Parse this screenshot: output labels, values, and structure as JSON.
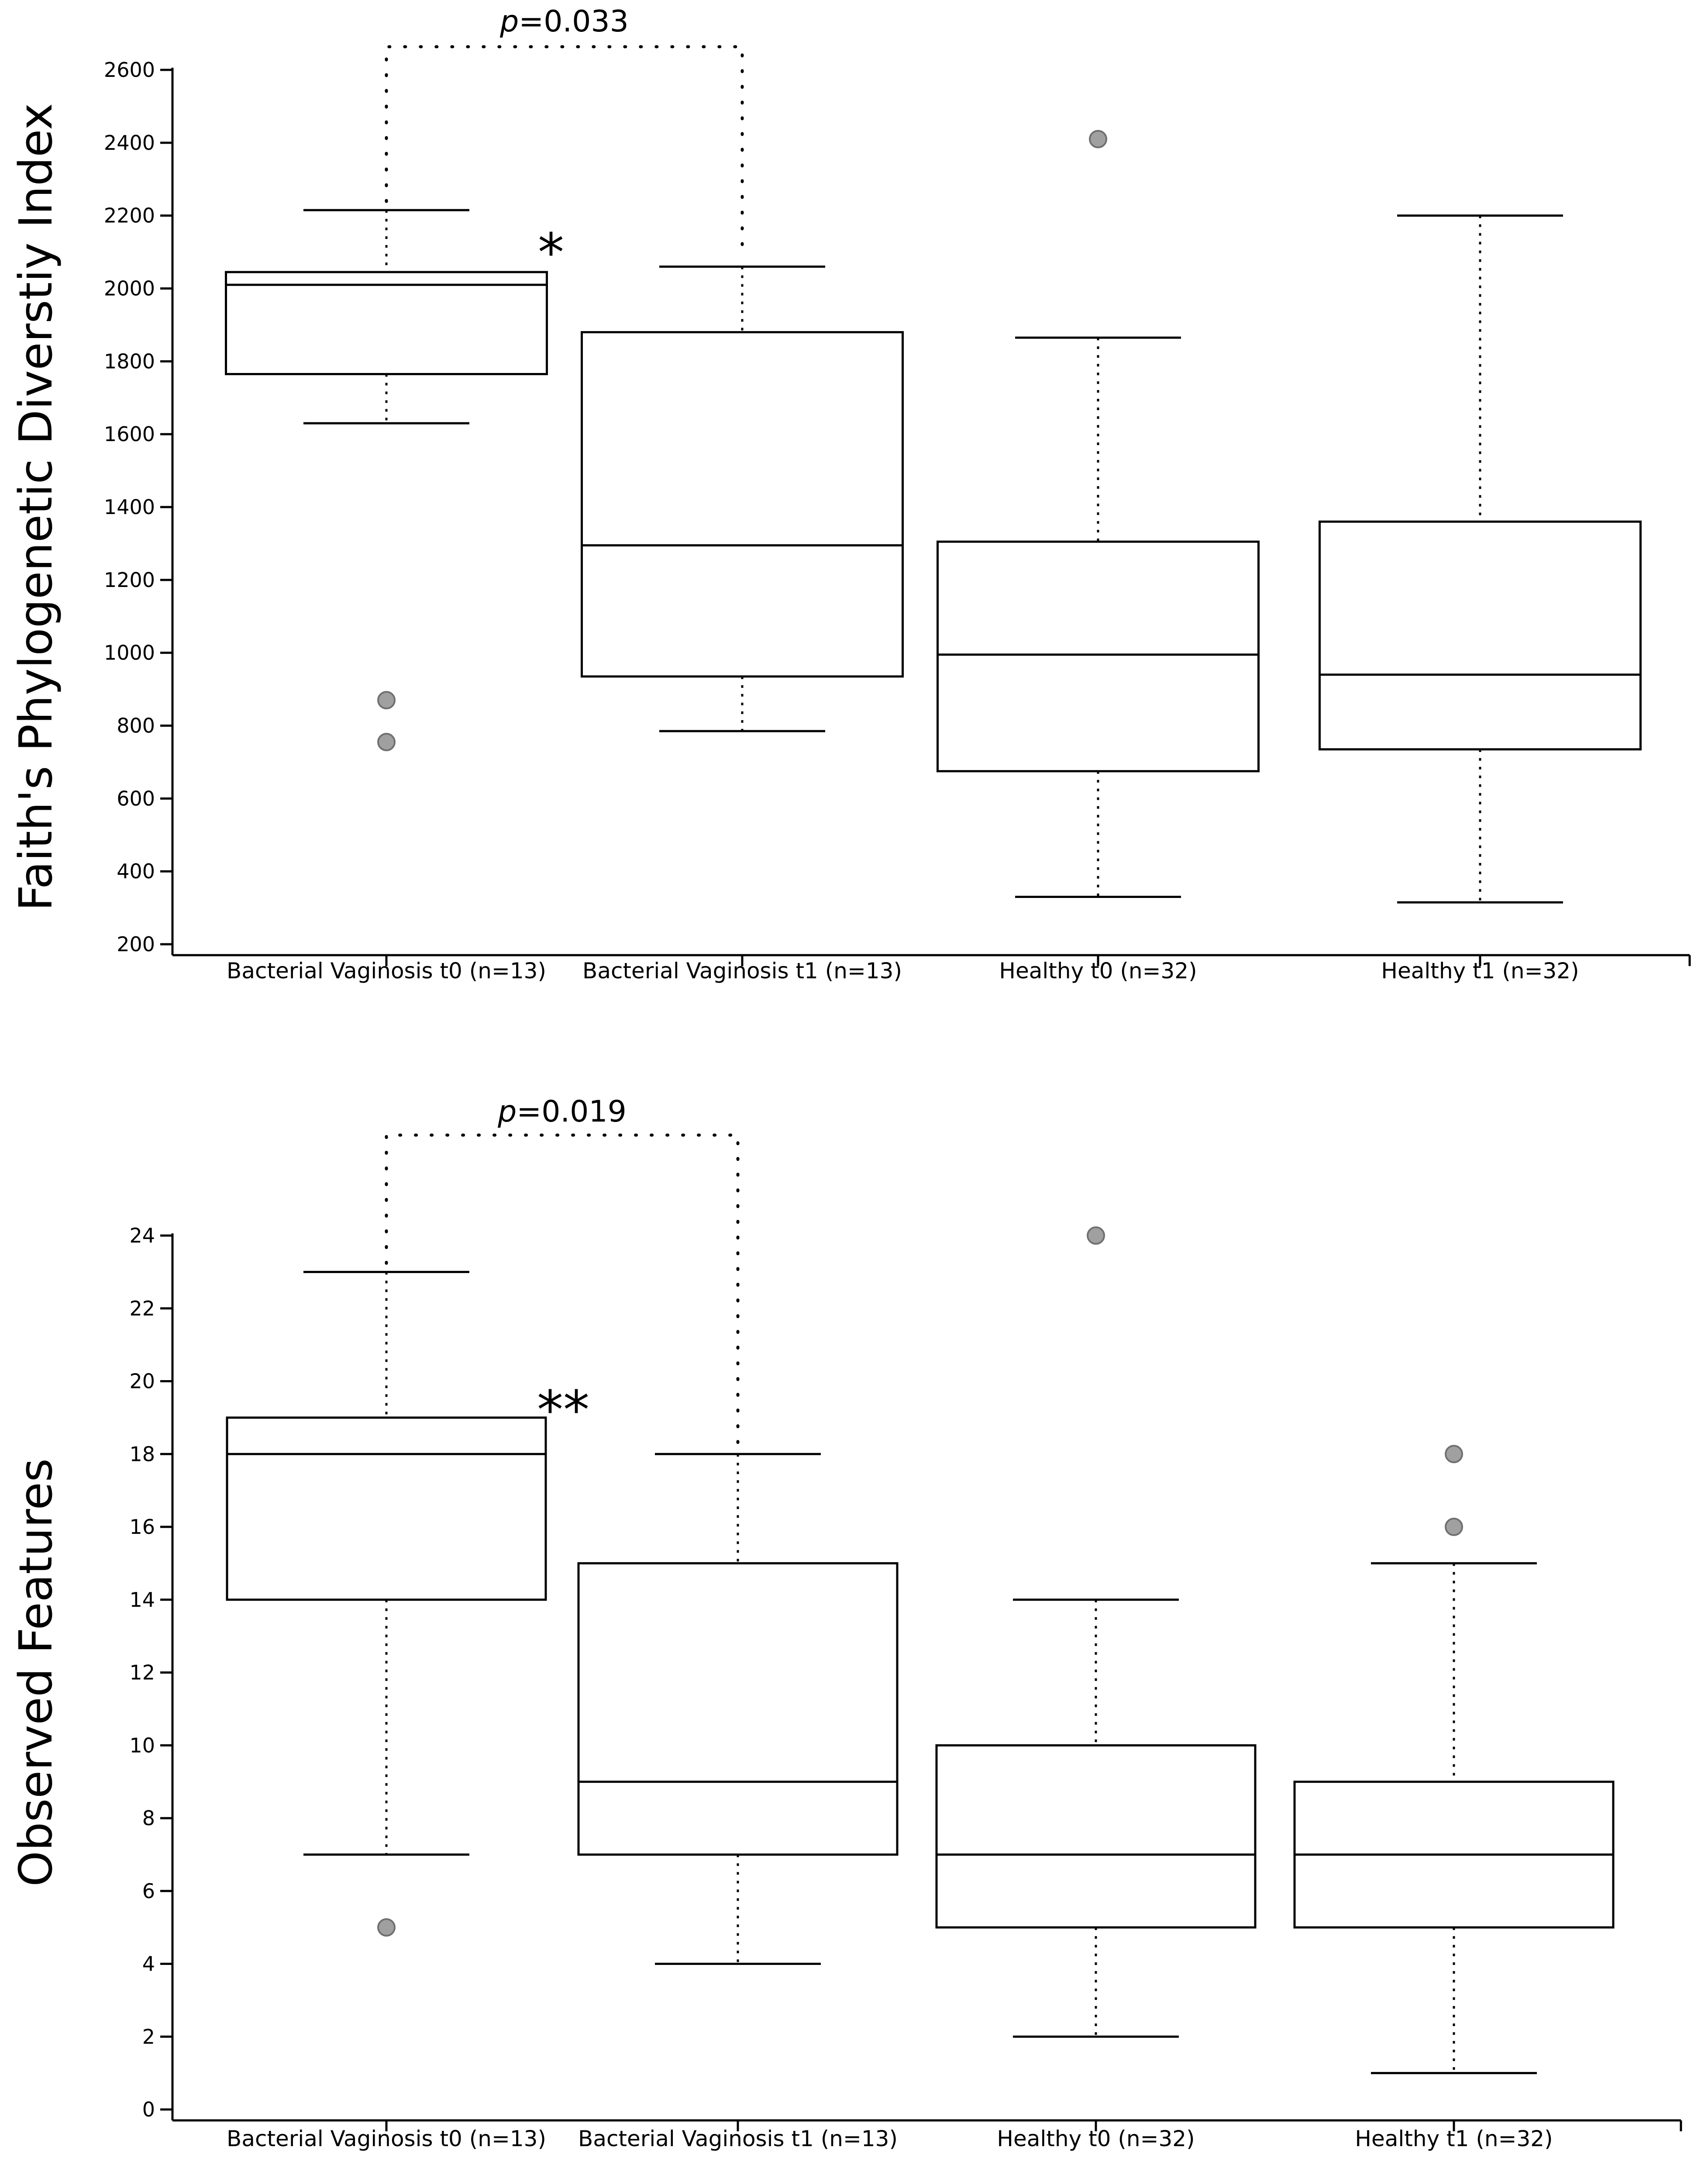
{
  "chart_data": [
    {
      "type": "box",
      "ylabel": "Faith's Phylogenetic Diverstiy Index",
      "ylim": [
        200,
        2600
      ],
      "yticks": [
        200,
        400,
        600,
        800,
        1000,
        1200,
        1400,
        1600,
        1800,
        2000,
        2200,
        2400,
        2600
      ],
      "categories": [
        "Bacterial Vaginosis t0 (n=13)",
        "Bacterial Vaginosis t1 (n=13)",
        "Healthy t0 (n=32)",
        "Healthy t1 (n=32)"
      ],
      "boxes": [
        {
          "min": 1630,
          "q1": 1765,
          "median": 2010,
          "q3": 2045,
          "max": 2215,
          "outliers": [
            870,
            755
          ]
        },
        {
          "min": 785,
          "q1": 935,
          "median": 1295,
          "q3": 1880,
          "max": 2060,
          "outliers": []
        },
        {
          "min": 330,
          "q1": 675,
          "median": 995,
          "q3": 1305,
          "max": 1865,
          "outliers": [
            2410
          ]
        },
        {
          "min": 315,
          "q1": 735,
          "median": 940,
          "q3": 1360,
          "max": 2200,
          "outliers": []
        }
      ],
      "comparison": {
        "groups": [
          0,
          1
        ],
        "p_prefix": "p",
        "p_value": "=0.033",
        "stars": "*"
      }
    },
    {
      "type": "box",
      "ylabel": "Observed Features",
      "ylim": [
        0,
        24
      ],
      "yticks": [
        0,
        2,
        4,
        6,
        8,
        10,
        12,
        14,
        16,
        18,
        20,
        22,
        24
      ],
      "categories": [
        "Bacterial Vaginosis t0 (n=13)",
        "Bacterial Vaginosis t1 (n=13)",
        "Healthy t0 (n=32)",
        "Healthy t1 (n=32)"
      ],
      "boxes": [
        {
          "min": 7,
          "q1": 14,
          "median": 18,
          "q3": 19,
          "max": 23,
          "outliers": [
            5
          ]
        },
        {
          "min": 4,
          "q1": 7,
          "median": 9,
          "q3": 15,
          "max": 18,
          "outliers": []
        },
        {
          "min": 2,
          "q1": 5,
          "median": 7,
          "q3": 10,
          "max": 14,
          "outliers": [
            24
          ]
        },
        {
          "min": 1,
          "q1": 5,
          "median": 7,
          "q3": 9,
          "max": 15,
          "outliers": [
            18,
            16
          ]
        }
      ],
      "comparison": {
        "groups": [
          0,
          1
        ],
        "p_prefix": "p",
        "p_value": "=0.019",
        "stars": "**"
      }
    }
  ]
}
